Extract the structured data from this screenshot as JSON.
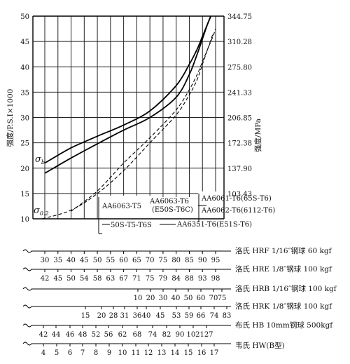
{
  "chart_data": {
    "type": "line",
    "ylabel_left": "强度/P.S.I×1000",
    "ylabel_right": "强度/MPa",
    "y_left_ticks": [
      10,
      15,
      20,
      25,
      30,
      35,
      40,
      45,
      50
    ],
    "y_left_range": [
      10,
      50
    ],
    "y_right_ticks": [
      "103.43",
      "137.90",
      "172.38",
      "206.85",
      "241.33",
      "275.80",
      "310.28",
      "344.75"
    ],
    "y_right_values": [
      15,
      20,
      25,
      30,
      35,
      40,
      45,
      50
    ],
    "x_reference_scale": "洛氏 HRF 1/16″钢球 60 kgf",
    "x_range": [
      27.5,
      95
    ],
    "grid": true,
    "series": [
      {
        "name": "σb",
        "line": "solid",
        "x": [
          30,
          40,
          50,
          60,
          70,
          80,
          85,
          88,
          90,
          92,
          94
        ],
        "y": [
          21,
          24,
          26.3,
          28.5,
          31.3,
          36.3,
          40.5,
          43.5,
          46,
          48.5,
          51
        ]
      },
      {
        "name": "",
        "line": "solid",
        "x": [
          30,
          40,
          50,
          60,
          70,
          80,
          85,
          88,
          90,
          92,
          94
        ],
        "y": [
          19,
          22,
          24.8,
          27.5,
          30,
          34,
          38.5,
          42.5,
          45.5,
          48.5,
          51
        ]
      },
      {
        "name": "",
        "line": "dashed",
        "x": [
          40,
          50,
          60,
          70,
          80,
          85,
          88,
          90,
          92,
          94,
          95
        ],
        "y": [
          11.5,
          15.5,
          21,
          26,
          31.5,
          35.5,
          38.5,
          41,
          43.5,
          46,
          47.5
        ]
      },
      {
        "name": "σ0.2",
        "line": "dashed",
        "x": [
          29,
          40,
          50,
          60,
          70,
          80,
          85,
          88,
          90,
          92,
          94
        ],
        "y": [
          10,
          11.7,
          15,
          19.5,
          25,
          30.5,
          34.5,
          37.5,
          40.5,
          43.5,
          46.5
        ]
      }
    ],
    "series_labels": [
      {
        "text": "σ",
        "sub": "b"
      },
      {
        "text": "σ",
        "sub": "0.2"
      }
    ],
    "alloy_ranges": [
      {
        "label": "AA6063-T5",
        "from": 50,
        "to": 58
      },
      {
        "label": "AA6063-T6",
        "from": 60,
        "to": 74
      },
      {
        "label": "(E50S-T6C)",
        "from": 60,
        "to": 74
      },
      {
        "label": "AA6061-T6(65S-T6)",
        "from": 80,
        "to": 95
      },
      {
        "label": "AA6062-T6(6112-T6)",
        "from": 80,
        "to": 95
      },
      {
        "label": "50S-T5-T6S",
        "from": 52,
        "to": 67
      },
      {
        "label": "AA6351-T6(E51S-T6)",
        "from": 75,
        "to": 95
      }
    ],
    "hardness_scales": [
      {
        "label": "洛氏  HRF 1/16″钢球  60 kgf",
        "ticks": [
          "30",
          "35",
          "40",
          "45",
          "50",
          "55",
          "60",
          "65",
          "70",
          "75",
          "80",
          "85",
          "90",
          "95"
        ]
      },
      {
        "label": "洛氏  HRE 1/8″钢球  100 kgf",
        "ticks": [
          "42",
          "45",
          "50",
          "54",
          "58",
          "63",
          "67",
          "71",
          "75",
          "79",
          "84",
          "88",
          "93",
          "98"
        ]
      },
      {
        "label": "洛氏  HRB 1/16″钢球  100 kgf",
        "ticks": [
          "10",
          "20",
          "30",
          "40",
          "50",
          "60",
          "70",
          "75"
        ]
      },
      {
        "label": "洛氏  HRK 1/8″钢球  100 kgf",
        "ticks": [
          "15",
          "20",
          "28",
          "31",
          "36",
          "40",
          "45",
          "53",
          "59",
          "66",
          "74",
          "83"
        ]
      },
      {
        "label": "布氏  HB 10mm钢球  500kgf",
        "ticks": [
          "42",
          "44",
          "46",
          "48",
          "52",
          "56",
          "62",
          "68",
          "74",
          "82",
          "90",
          "102",
          "127"
        ]
      },
      {
        "label": "韦氏  HW(B型)",
        "ticks": [
          "4",
          "5",
          "6",
          "7",
          "8",
          "9",
          "10",
          "11",
          "12",
          "13",
          "14",
          "15",
          "16",
          "17"
        ]
      }
    ]
  }
}
